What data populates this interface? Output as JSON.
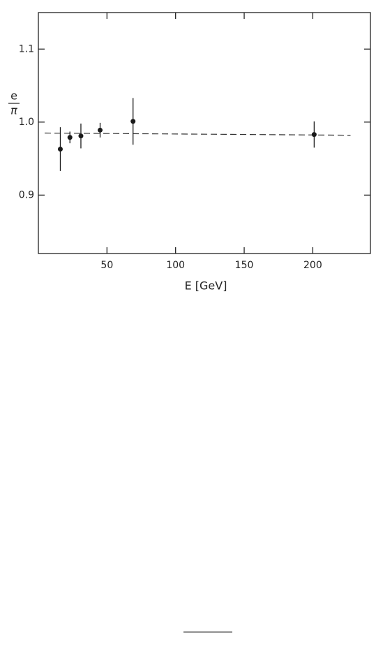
{
  "chart_data": {
    "type": "scatter",
    "ylabel": {
      "numerator": "e",
      "denominator": "π"
    },
    "xlabel": "E [GeV]",
    "xlim": [
      0,
      242
    ],
    "ylim": [
      0.82,
      1.15
    ],
    "xticks": [
      50,
      100,
      150,
      200
    ],
    "yticks": [
      0.9,
      {
        "value": 1,
        "label": "1.0"
      },
      1.1
    ],
    "series": [
      {
        "color": "#1a1a1a",
        "x": [
          16,
          23,
          31,
          45,
          69,
          201
        ],
        "values": [
          0.963,
          0.979,
          0.981,
          0.989,
          1.001,
          0.983
        ],
        "errors": [
          0.03,
          0.008,
          0.017,
          0.01,
          0.032,
          0.018
        ]
      }
    ],
    "fit": {
      "x": [
        4.6,
        227.5
      ],
      "y": [
        0.985,
        0.982
      ],
      "color": "#333333"
    }
  }
}
